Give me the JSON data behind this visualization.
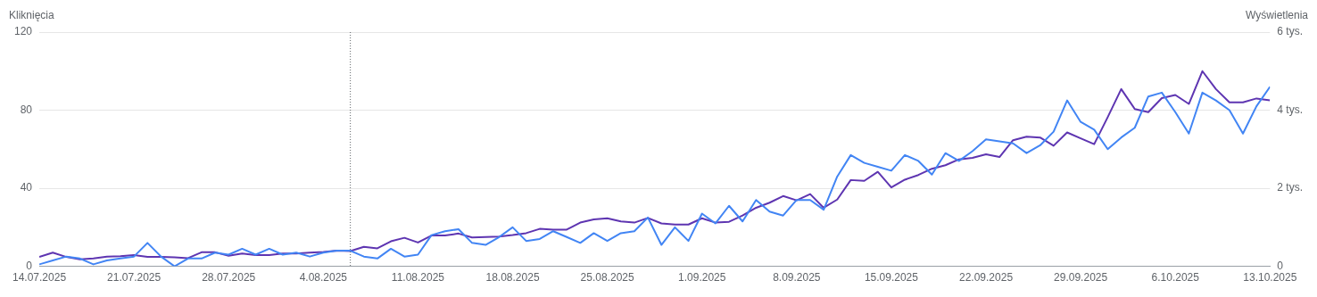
{
  "chart_data": {
    "type": "line",
    "ylabel": "Kliknięcia",
    "y2label": "Wyświetlenia",
    "x": [
      "2025-07-14",
      "2025-07-15",
      "2025-07-16",
      "2025-07-17",
      "2025-07-18",
      "2025-07-19",
      "2025-07-20",
      "2025-07-21",
      "2025-07-22",
      "2025-07-23",
      "2025-07-24",
      "2025-07-25",
      "2025-07-26",
      "2025-07-27",
      "2025-07-28",
      "2025-07-29",
      "2025-07-30",
      "2025-07-31",
      "2025-08-01",
      "2025-08-02",
      "2025-08-03",
      "2025-08-04",
      "2025-08-05",
      "2025-08-06",
      "2025-08-07",
      "2025-08-08",
      "2025-08-09",
      "2025-08-10",
      "2025-08-11",
      "2025-08-12",
      "2025-08-13",
      "2025-08-14",
      "2025-08-15",
      "2025-08-16",
      "2025-08-17",
      "2025-08-18",
      "2025-08-19",
      "2025-08-20",
      "2025-08-21",
      "2025-08-22",
      "2025-08-23",
      "2025-08-24",
      "2025-08-25",
      "2025-08-26",
      "2025-08-27",
      "2025-08-28",
      "2025-08-29",
      "2025-08-30",
      "2025-08-31",
      "2025-09-01",
      "2025-09-02",
      "2025-09-03",
      "2025-09-04",
      "2025-09-05",
      "2025-09-06",
      "2025-09-07",
      "2025-09-08",
      "2025-09-09",
      "2025-09-10",
      "2025-09-11",
      "2025-09-12",
      "2025-09-13",
      "2025-09-14",
      "2025-09-15",
      "2025-09-16",
      "2025-09-17",
      "2025-09-18",
      "2025-09-19",
      "2025-09-20",
      "2025-09-21",
      "2025-09-22",
      "2025-09-23",
      "2025-09-24",
      "2025-09-25",
      "2025-09-26",
      "2025-09-27",
      "2025-09-28",
      "2025-09-29",
      "2025-09-30",
      "2025-10-01",
      "2025-10-02",
      "2025-10-03",
      "2025-10-04",
      "2025-10-05",
      "2025-10-06",
      "2025-10-07",
      "2025-10-08",
      "2025-10-09",
      "2025-10-10",
      "2025-10-11",
      "2025-10-12",
      "2025-10-13"
    ],
    "series": [
      {
        "color": "#4285f4",
        "values": [
          1,
          3,
          5,
          4,
          1,
          3,
          4,
          5,
          12,
          5,
          0,
          4,
          4,
          7,
          6,
          9,
          6,
          9,
          6,
          7,
          5,
          7,
          8,
          8,
          5,
          4,
          9,
          5,
          6,
          16,
          18,
          19,
          12,
          11,
          15,
          20,
          13,
          14,
          18,
          15,
          12,
          17,
          13,
          17,
          18,
          25,
          11,
          20,
          13,
          27,
          22,
          31,
          23,
          34,
          28,
          26,
          34,
          34,
          29,
          46,
          57,
          53,
          51,
          49,
          57,
          54,
          47,
          58,
          54,
          59,
          65,
          64,
          63,
          58,
          62,
          69,
          85,
          74,
          70,
          60,
          66,
          71,
          87,
          89,
          79,
          68,
          89,
          85,
          80,
          68,
          82,
          92
        ]
      },
      {
        "color": "#5e35b1",
        "axis": "y2",
        "values": [
          0.24,
          0.35,
          0.24,
          0.18,
          0.2,
          0.25,
          0.26,
          0.29,
          0.24,
          0.24,
          0.23,
          0.21,
          0.36,
          0.36,
          0.27,
          0.33,
          0.29,
          0.29,
          0.33,
          0.33,
          0.35,
          0.37,
          0.4,
          0.39,
          0.5,
          0.46,
          0.64,
          0.73,
          0.61,
          0.79,
          0.79,
          0.84,
          0.74,
          0.75,
          0.76,
          0.8,
          0.85,
          0.96,
          0.94,
          0.94,
          1.12,
          1.2,
          1.23,
          1.15,
          1.12,
          1.24,
          1.1,
          1.07,
          1.07,
          1.23,
          1.12,
          1.14,
          1.3,
          1.5,
          1.63,
          1.8,
          1.69,
          1.85,
          1.5,
          1.71,
          2.21,
          2.19,
          2.42,
          2.02,
          2.22,
          2.34,
          2.5,
          2.59,
          2.74,
          2.78,
          2.87,
          2.8,
          3.23,
          3.32,
          3.3,
          3.09,
          3.43,
          3.28,
          3.13,
          3.82,
          4.54,
          4.03,
          3.95,
          4.31,
          4.39,
          4.16,
          5.0,
          4.54,
          4.2,
          4.2,
          4.3,
          4.25
        ]
      }
    ],
    "xlim": [
      "2025-07-14",
      "2025-10-13"
    ],
    "xticks": [
      {
        "value": "2025-07-14",
        "label": "14.07.2025"
      },
      {
        "value": "2025-07-21",
        "label": "21.07.2025"
      },
      {
        "value": "2025-07-28",
        "label": "28.07.2025"
      },
      {
        "value": "2025-08-04",
        "label": "4.08.2025"
      },
      {
        "value": "2025-08-11",
        "label": "11.08.2025"
      },
      {
        "value": "2025-08-18",
        "label": "18.08.2025"
      },
      {
        "value": "2025-08-25",
        "label": "25.08.2025"
      },
      {
        "value": "2025-09-01",
        "label": "1.09.2025"
      },
      {
        "value": "2025-09-08",
        "label": "8.09.2025"
      },
      {
        "value": "2025-09-15",
        "label": "15.09.2025"
      },
      {
        "value": "2025-09-22",
        "label": "22.09.2025"
      },
      {
        "value": "2025-09-29",
        "label": "29.09.2025"
      },
      {
        "value": "2025-10-06",
        "label": "6.10.2025"
      },
      {
        "value": "2025-10-13",
        "label": "13.10.2025"
      }
    ],
    "ylim": [
      0,
      120
    ],
    "yticks": [
      0,
      40,
      80,
      120
    ],
    "y2lim": [
      0,
      6
    ],
    "y2ticks": [
      0,
      {
        "value": 2,
        "label": "2 tys."
      },
      {
        "value": 4,
        "label": "4 tys."
      },
      {
        "value": 6,
        "label": "6 tys."
      }
    ],
    "ref_lines": [
      {
        "axis": "x",
        "value": "2025-08-06",
        "color": "#5f6368",
        "line_style": "dotted"
      }
    ],
    "grid": "y",
    "marker": "none",
    "line_style": "solid"
  }
}
